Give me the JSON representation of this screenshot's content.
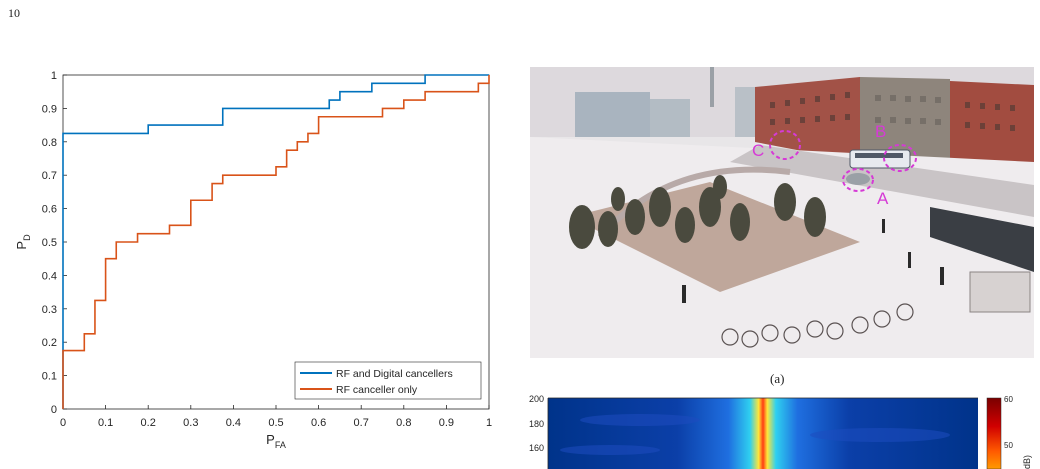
{
  "page_number": "10",
  "chart_data": [
    {
      "type": "line",
      "title": "",
      "xlabel_main": "P",
      "xlabel_sub": "FA",
      "ylabel_main": "P",
      "ylabel_sub": "D",
      "xlim": [
        0,
        1
      ],
      "ylim": [
        0,
        1
      ],
      "x_ticks": [
        "0",
        "0.1",
        "0.2",
        "0.3",
        "0.4",
        "0.5",
        "0.6",
        "0.7",
        "0.8",
        "0.9",
        "1"
      ],
      "y_ticks": [
        "0",
        "0.1",
        "0.2",
        "0.3",
        "0.4",
        "0.5",
        "0.6",
        "0.7",
        "0.8",
        "0.9",
        "1"
      ],
      "legend_position": "bottom-right",
      "series": [
        {
          "name": "RF and Digital cancellers",
          "color": "#0072bd",
          "points": [
            [
              0,
              0
            ],
            [
              0,
              0.825
            ],
            [
              0.2,
              0.825
            ],
            [
              0.2,
              0.85
            ],
            [
              0.375,
              0.85
            ],
            [
              0.375,
              0.9
            ],
            [
              0.625,
              0.9
            ],
            [
              0.625,
              0.925
            ],
            [
              0.65,
              0.925
            ],
            [
              0.65,
              0.95
            ],
            [
              0.725,
              0.95
            ],
            [
              0.725,
              0.975
            ],
            [
              0.85,
              0.975
            ],
            [
              0.85,
              1.0
            ],
            [
              1.0,
              1.0
            ]
          ]
        },
        {
          "name": "RF canceller only",
          "color": "#d95319",
          "points": [
            [
              0,
              0
            ],
            [
              0,
              0.175
            ],
            [
              0.05,
              0.175
            ],
            [
              0.05,
              0.225
            ],
            [
              0.075,
              0.225
            ],
            [
              0.075,
              0.325
            ],
            [
              0.1,
              0.325
            ],
            [
              0.1,
              0.45
            ],
            [
              0.125,
              0.45
            ],
            [
              0.125,
              0.5
            ],
            [
              0.175,
              0.5
            ],
            [
              0.175,
              0.525
            ],
            [
              0.25,
              0.525
            ],
            [
              0.25,
              0.55
            ],
            [
              0.3,
              0.55
            ],
            [
              0.3,
              0.625
            ],
            [
              0.35,
              0.625
            ],
            [
              0.35,
              0.675
            ],
            [
              0.375,
              0.675
            ],
            [
              0.375,
              0.7
            ],
            [
              0.5,
              0.7
            ],
            [
              0.5,
              0.725
            ],
            [
              0.525,
              0.725
            ],
            [
              0.525,
              0.775
            ],
            [
              0.55,
              0.775
            ],
            [
              0.55,
              0.8
            ],
            [
              0.575,
              0.8
            ],
            [
              0.575,
              0.825
            ],
            [
              0.6,
              0.825
            ],
            [
              0.6,
              0.875
            ],
            [
              0.75,
              0.875
            ],
            [
              0.75,
              0.9
            ],
            [
              0.8,
              0.9
            ],
            [
              0.8,
              0.925
            ],
            [
              0.85,
              0.925
            ],
            [
              0.85,
              0.95
            ],
            [
              0.975,
              0.95
            ],
            [
              0.975,
              0.975
            ],
            [
              1.0,
              0.975
            ],
            [
              1.0,
              1.0
            ]
          ]
        }
      ]
    },
    {
      "type": "heatmap",
      "y_ticks": [
        "200",
        "180",
        "160"
      ],
      "colorbar_ticks": [
        "60",
        "50"
      ],
      "colorbar_label_partial": "dB)",
      "ylim_visible": [
        150,
        200
      ],
      "colormap": "jet"
    }
  ],
  "photo": {
    "description_labels": [
      "A",
      "B",
      "C"
    ],
    "marker_color": "#d63ad6"
  },
  "caption_a": "(a)"
}
